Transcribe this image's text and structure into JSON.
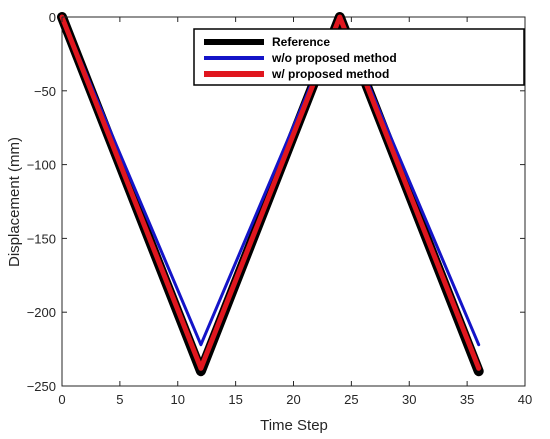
{
  "chart_data": {
    "type": "line",
    "title": "",
    "xlabel": "Time Step",
    "ylabel": "Displacement (mm)",
    "xlim": [
      0,
      40
    ],
    "ylim": [
      -250,
      0
    ],
    "xticks": [
      0,
      5,
      10,
      15,
      20,
      25,
      30,
      35,
      40
    ],
    "yticks": [
      0,
      -50,
      -100,
      -150,
      -200,
      -250
    ],
    "grid": false,
    "legend_position": "top-right",
    "series": [
      {
        "name": "Reference",
        "color": "#000000",
        "x": [
          0,
          12,
          24,
          36
        ],
        "y": [
          0,
          -240,
          0,
          -240
        ]
      },
      {
        "name": "w/o proposed method",
        "color": "#1414c8",
        "x": [
          0,
          12,
          24,
          36
        ],
        "y": [
          0,
          -222,
          0,
          -222
        ]
      },
      {
        "name": "w/ proposed method",
        "color": "#e0161e",
        "x": [
          0,
          12,
          24,
          36
        ],
        "y": [
          0,
          -238,
          0,
          -238
        ]
      }
    ]
  }
}
